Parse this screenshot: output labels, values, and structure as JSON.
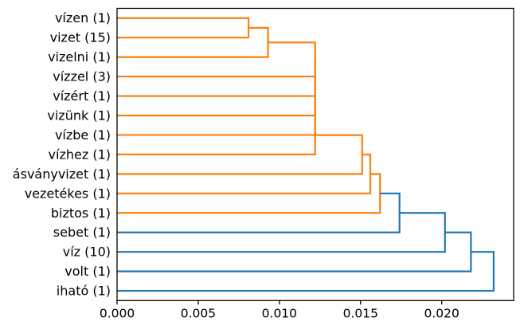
{
  "figure": {
    "background": "#ffffff",
    "frame_color": "#000000",
    "text_color": "#000000"
  },
  "chart_data": {
    "type": "dendrogram",
    "orientation": "right",
    "title": "",
    "xlabel": "",
    "ylabel": "",
    "grid": false,
    "legend": null,
    "xlim": [
      0.0,
      0.02443
    ],
    "xticks": [
      {
        "value": 0.0,
        "label": "0.000"
      },
      {
        "value": 0.005,
        "label": "0.005"
      },
      {
        "value": 0.01,
        "label": "0.010"
      },
      {
        "value": 0.015,
        "label": "0.015"
      },
      {
        "value": 0.02,
        "label": "0.020"
      }
    ],
    "leaves": [
      {
        "label": "vízen (1)"
      },
      {
        "label": "vizet (15)"
      },
      {
        "label": "vizelni (1)"
      },
      {
        "label": "vízzel (3)"
      },
      {
        "label": "vízért (1)"
      },
      {
        "label": "vizünk (1)"
      },
      {
        "label": "vízbe (1)"
      },
      {
        "label": "vízhez (1)"
      },
      {
        "label": "ásványvizet (1)"
      },
      {
        "label": "vezetékes (1)"
      },
      {
        "label": "biztos (1)"
      },
      {
        "label": "sebet (1)"
      },
      {
        "label": "víz (10)"
      },
      {
        "label": "volt (1)"
      },
      {
        "label": "iható (1)"
      }
    ],
    "links": [
      {
        "a": 0,
        "b": 1,
        "distance": 0.0081,
        "color": "orange"
      },
      {
        "a": 15,
        "b": 2,
        "distance": 0.0093,
        "color": "orange"
      },
      {
        "a": 16,
        "b": 3,
        "distance": 0.0122,
        "color": "orange"
      },
      {
        "a": 17,
        "b": 4,
        "distance": 0.0122,
        "color": "orange"
      },
      {
        "a": 18,
        "b": 5,
        "distance": 0.0122,
        "color": "orange"
      },
      {
        "a": 19,
        "b": 6,
        "distance": 0.0122,
        "color": "orange"
      },
      {
        "a": 20,
        "b": 7,
        "distance": 0.0122,
        "color": "orange"
      },
      {
        "a": 21,
        "b": 8,
        "distance": 0.0151,
        "color": "orange"
      },
      {
        "a": 22,
        "b": 9,
        "distance": 0.0156,
        "color": "orange"
      },
      {
        "a": 23,
        "b": 10,
        "distance": 0.0162,
        "color": "orange"
      },
      {
        "a": 24,
        "b": 11,
        "distance": 0.0174,
        "color": "blue"
      },
      {
        "a": 25,
        "b": 12,
        "distance": 0.0202,
        "color": "blue"
      },
      {
        "a": 26,
        "b": 13,
        "distance": 0.0218,
        "color": "blue"
      },
      {
        "a": 27,
        "b": 14,
        "distance": 0.0232,
        "color": "blue"
      }
    ],
    "palette": {
      "orange": "#ff7f0e",
      "blue": "#1f77b4"
    }
  }
}
